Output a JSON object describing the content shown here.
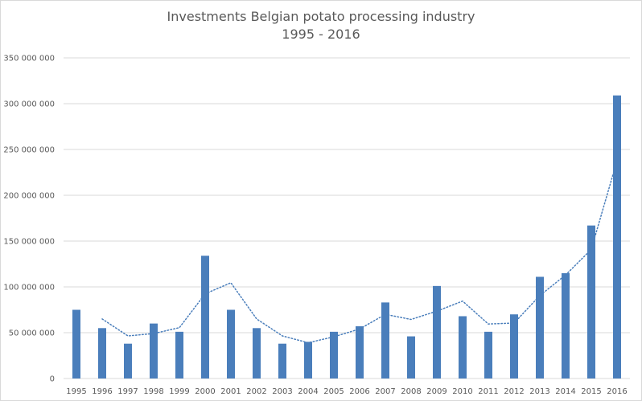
{
  "chart_data": {
    "type": "bar",
    "title": "Investments Belgian potato processing industry",
    "subtitle": "1995 - 2016",
    "xlabel": "",
    "ylabel": "",
    "ylim": [
      0,
      350000000
    ],
    "y_ticks": [
      "0",
      "50 000 000",
      "100 000 000",
      "150 000 000",
      "200 000 000",
      "250 000 000",
      "300 000 000",
      "350 000 000"
    ],
    "y_tick_values": [
      0,
      50000000,
      100000000,
      150000000,
      200000000,
      250000000,
      300000000,
      350000000
    ],
    "categories": [
      "1995",
      "1996",
      "1997",
      "1998",
      "1999",
      "2000",
      "2001",
      "2002",
      "2003",
      "2004",
      "2005",
      "2006",
      "2007",
      "2008",
      "2009",
      "2010",
      "2011",
      "2012",
      "2013",
      "2014",
      "2015",
      "2016"
    ],
    "values": [
      75000000,
      55000000,
      38000000,
      60000000,
      51000000,
      134000000,
      75000000,
      55000000,
      38000000,
      40000000,
      51000000,
      57000000,
      83000000,
      46000000,
      101000000,
      68000000,
      51000000,
      70000000,
      111000000,
      115000000,
      167000000,
      309000000
    ],
    "trendline": {
      "type": "moving-average",
      "period": 2,
      "style": "dotted",
      "start_category": "1996",
      "values": [
        65000000,
        46500000,
        49000000,
        55500000,
        92500000,
        104500000,
        65000000,
        46500000,
        39000000,
        45500000,
        54000000,
        70000000,
        64500000,
        73500000,
        84500000,
        59500000,
        60500000,
        90500000,
        113000000,
        141000000,
        238000000
      ]
    },
    "grid": true,
    "legend": "none",
    "colors": {
      "bar": "#4a7ebb",
      "trendline": "#4a7ebb",
      "gridline": "#d9d9d9",
      "text": "#595959"
    }
  }
}
